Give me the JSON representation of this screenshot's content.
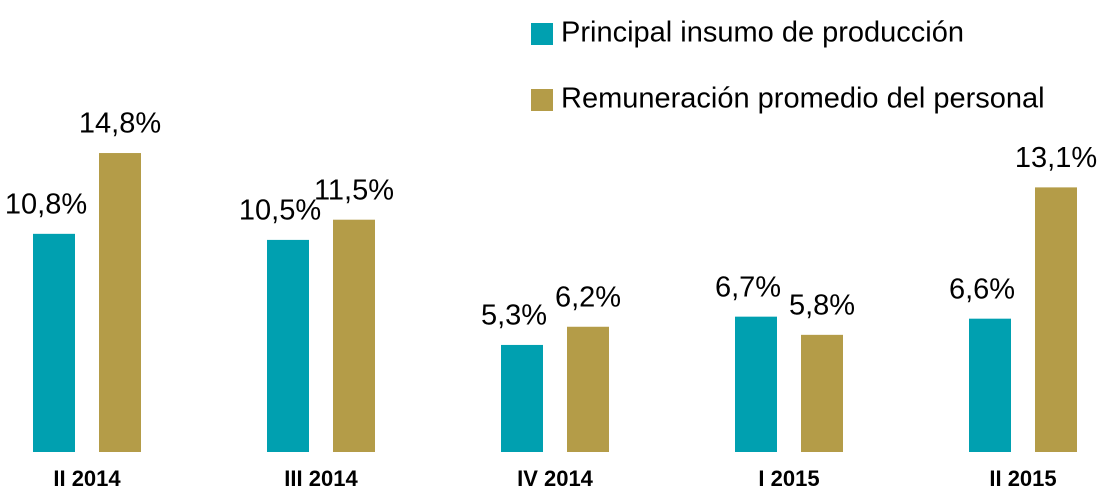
{
  "chart_data": {
    "type": "bar",
    "categories": [
      "II 2014",
      "III 2014",
      "IV 2014",
      "I 2015",
      "II 2015"
    ],
    "series": [
      {
        "name": "Principal insumo de producción",
        "color": "#00a0b0",
        "values": [
          10.8,
          10.5,
          5.3,
          6.7,
          6.6
        ],
        "value_labels": [
          "10,8%",
          "10,5%",
          "5,3%",
          "6,7%",
          "6,6%"
        ]
      },
      {
        "name": "Remuneración promedio del personal",
        "color": "#b49c48",
        "values": [
          14.8,
          11.5,
          6.2,
          5.8,
          13.1
        ],
        "value_labels": [
          "14,8%",
          "11,5%",
          "6,2%",
          "5,8%",
          "13,1%"
        ]
      }
    ]
  }
}
